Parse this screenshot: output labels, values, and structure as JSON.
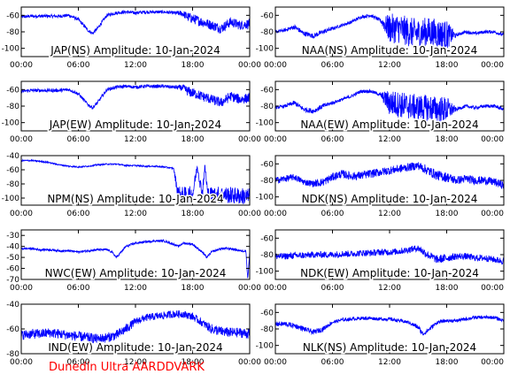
{
  "colors": {
    "trace": "#0000ff",
    "axes": "#000000",
    "footer": "#ff0000"
  },
  "footer": {
    "label": "Dunedin Ultra AARDDVARK"
  },
  "chart_data": [
    {
      "type": "line",
      "title": "JAP(NS) Amplitude: 10-Jan-2024",
      "xticks": [
        "00:00",
        "06:00",
        "12:00",
        "18:00",
        "00:00"
      ],
      "xlim": [
        0,
        24
      ],
      "ylim": [
        -110,
        -50
      ],
      "yticks": [
        -60,
        -80,
        -100
      ],
      "series": [
        {
          "x": [
            0,
            1,
            2,
            3,
            4,
            5,
            6,
            7,
            7.5,
            8,
            9,
            10,
            11,
            12,
            13,
            14,
            15,
            16,
            17,
            17.5,
            18,
            19,
            20,
            21,
            22,
            23,
            24
          ],
          "y": [
            -62,
            -61,
            -61,
            -61,
            -61,
            -60,
            -65,
            -78,
            -82,
            -76,
            -60,
            -57,
            -56,
            -57,
            -56,
            -56,
            -56,
            -57,
            -58,
            -62,
            -64,
            -68,
            -72,
            -76,
            -68,
            -72,
            -70
          ],
          "band": [
            2,
            2,
            2,
            2,
            2,
            2,
            2,
            2,
            2,
            2,
            2,
            2,
            2,
            2,
            2,
            2,
            2,
            2,
            4,
            6,
            6,
            6,
            6,
            6,
            6,
            6,
            6
          ]
        }
      ]
    },
    {
      "type": "line",
      "title": "NAA(NS) Amplitude: 10-Jan-2024",
      "xticks": [
        "00:00",
        "06:00",
        "12:00",
        "18:00",
        "00:00"
      ],
      "xlim": [
        0,
        24
      ],
      "ylim": [
        -110,
        -50
      ],
      "yticks": [
        -60,
        -80,
        -100
      ],
      "series": [
        {
          "x": [
            0,
            1,
            2,
            3,
            4,
            5,
            6,
            7,
            8,
            9,
            10,
            11,
            12,
            13,
            14,
            15,
            16,
            17,
            18,
            19,
            20,
            21,
            22,
            23,
            24
          ],
          "y": [
            -80,
            -78,
            -74,
            -82,
            -85,
            -80,
            -76,
            -72,
            -68,
            -62,
            -60,
            -66,
            -76,
            -76,
            -80,
            -82,
            -80,
            -82,
            -84,
            -84,
            -80,
            -82,
            -80,
            -80,
            -84
          ],
          "band": [
            2,
            2,
            3,
            3,
            3,
            3,
            2,
            2,
            2,
            2,
            2,
            2,
            18,
            18,
            18,
            18,
            18,
            18,
            18,
            2,
            2,
            2,
            2,
            2,
            2
          ]
        }
      ]
    },
    {
      "type": "line",
      "title": "JAP(EW) Amplitude: 10-Jan-2024",
      "xticks": [
        "00:00",
        "06:00",
        "12:00",
        "18:00",
        "00:00"
      ],
      "xlim": [
        0,
        24
      ],
      "ylim": [
        -110,
        -50
      ],
      "yticks": [
        -60,
        -80,
        -100
      ],
      "series": [
        {
          "x": [
            0,
            1,
            2,
            3,
            4,
            5,
            6,
            7,
            7.5,
            8,
            9,
            10,
            11,
            12,
            13,
            14,
            15,
            16,
            17,
            17.5,
            18,
            19,
            20,
            21,
            22,
            23,
            24
          ],
          "y": [
            -62,
            -61,
            -61,
            -61,
            -61,
            -60,
            -65,
            -78,
            -82,
            -76,
            -60,
            -57,
            -56,
            -57,
            -56,
            -56,
            -56,
            -57,
            -58,
            -62,
            -64,
            -68,
            -72,
            -76,
            -68,
            -72,
            -70
          ],
          "band": [
            2,
            2,
            2,
            2,
            2,
            2,
            2,
            2,
            2,
            2,
            2,
            2,
            2,
            2,
            2,
            2,
            2,
            2,
            4,
            6,
            6,
            6,
            6,
            6,
            6,
            6,
            6
          ]
        }
      ]
    },
    {
      "type": "line",
      "title": "NAA(EW) Amplitude: 10-Jan-2024",
      "xticks": [
        "00:00",
        "06:00",
        "12:00",
        "18:00",
        "00:00"
      ],
      "xlim": [
        0,
        24
      ],
      "ylim": [
        -110,
        -50
      ],
      "yticks": [
        -60,
        -80,
        -100
      ],
      "series": [
        {
          "x": [
            0,
            1,
            2,
            3,
            4,
            5,
            6,
            7,
            8,
            9,
            10,
            11,
            12,
            13,
            14,
            15,
            16,
            17,
            18,
            19,
            20,
            21,
            22,
            23,
            24
          ],
          "y": [
            -82,
            -80,
            -76,
            -84,
            -86,
            -80,
            -76,
            -72,
            -68,
            -62,
            -62,
            -66,
            -76,
            -78,
            -80,
            -82,
            -82,
            -84,
            -84,
            -84,
            -80,
            -82,
            -80,
            -80,
            -84
          ],
          "band": [
            2,
            2,
            3,
            3,
            3,
            3,
            2,
            2,
            2,
            2,
            2,
            2,
            16,
            16,
            16,
            16,
            16,
            16,
            16,
            2,
            2,
            2,
            2,
            2,
            2
          ]
        }
      ]
    },
    {
      "type": "line",
      "title": "NPM(NS) Amplitude: 10-Jan-2024",
      "xticks": [
        "00:00",
        "06:00",
        "12:00",
        "18:00",
        "00:00"
      ],
      "xlim": [
        0,
        24
      ],
      "ylim": [
        -110,
        -40
      ],
      "yticks": [
        -40,
        -60,
        -80,
        -100
      ],
      "series": [
        {
          "x": [
            0,
            1,
            2,
            3,
            4,
            5,
            6,
            7,
            8,
            9,
            10,
            11,
            12,
            13,
            14,
            15,
            16,
            16.5,
            17,
            18,
            18.5,
            19,
            19.3,
            19.6,
            20,
            21,
            22,
            23,
            24
          ],
          "y": [
            -47,
            -47,
            -48,
            -50,
            -53,
            -55,
            -56,
            -55,
            -53,
            -52,
            -52,
            -54,
            -54,
            -55,
            -55,
            -56,
            -58,
            -95,
            -96,
            -95,
            -55,
            -95,
            -55,
            -95,
            -96,
            -95,
            -96,
            -97,
            -98
          ],
          "band": [
            1,
            1,
            1,
            1,
            1,
            1,
            1,
            1,
            1,
            1,
            1,
            1,
            1,
            1,
            1,
            1,
            1,
            12,
            12,
            12,
            4,
            12,
            4,
            12,
            12,
            12,
            12,
            12,
            12
          ]
        }
      ]
    },
    {
      "type": "line",
      "title": "NDK(NS) Amplitude: 10-Jan-2024",
      "xticks": [
        "00:00",
        "06:00",
        "12:00",
        "18:00",
        "00:00"
      ],
      "xlim": [
        0,
        24
      ],
      "ylim": [
        -110,
        -50
      ],
      "yticks": [
        -60,
        -80,
        -100
      ],
      "series": [
        {
          "x": [
            0,
            1,
            2,
            3,
            4,
            5,
            6,
            7,
            8,
            9,
            10,
            11,
            12,
            13,
            14,
            15,
            16,
            17,
            18,
            19,
            20,
            21,
            22,
            23,
            24
          ],
          "y": [
            -80,
            -78,
            -76,
            -82,
            -84,
            -82,
            -76,
            -72,
            -75,
            -74,
            -72,
            -70,
            -68,
            -66,
            -64,
            -62,
            -68,
            -74,
            -76,
            -80,
            -78,
            -80,
            -80,
            -82,
            -86
          ],
          "band": [
            4,
            4,
            4,
            4,
            4,
            5,
            5,
            5,
            5,
            5,
            5,
            5,
            5,
            5,
            5,
            5,
            6,
            6,
            6,
            5,
            5,
            5,
            5,
            5,
            5
          ]
        }
      ]
    },
    {
      "type": "line",
      "title": "NWC(EW) Amplitude: 10-Jan-2024",
      "xticks": [
        "00:00",
        "06:00",
        "12:00",
        "18:00",
        "00:00"
      ],
      "xlim": [
        0,
        24
      ],
      "ylim": [
        -70,
        -25
      ],
      "yticks": [
        -30,
        -40,
        -50,
        -60,
        -70
      ],
      "series": [
        {
          "x": [
            0,
            1,
            2,
            3,
            4,
            5,
            6,
            7,
            8,
            9,
            9.5,
            10,
            11,
            12,
            13,
            14,
            15,
            16,
            16.5,
            17,
            18,
            19,
            19.5,
            20,
            21,
            22,
            23,
            23.6,
            23.8,
            24
          ],
          "y": [
            -42,
            -42,
            -43,
            -43,
            -44,
            -44,
            -45,
            -44,
            -43,
            -43,
            -45,
            -50,
            -40,
            -37,
            -36,
            -35,
            -35,
            -38,
            -40,
            -37,
            -38,
            -45,
            -50,
            -45,
            -42,
            -42,
            -44,
            -44,
            -70,
            -44
          ],
          "band": [
            1,
            1,
            1,
            1,
            1,
            1,
            1,
            1,
            1,
            1,
            1,
            1,
            1,
            1,
            1,
            1,
            1,
            1,
            1,
            1,
            1,
            1,
            1,
            1,
            1,
            1,
            1,
            1,
            1,
            1
          ]
        }
      ]
    },
    {
      "type": "line",
      "title": "NDK(EW) Amplitude: 10-Jan-2024",
      "xticks": [
        "00:00",
        "06:00",
        "12:00",
        "18:00",
        "00:00"
      ],
      "xlim": [
        0,
        24
      ],
      "ylim": [
        -110,
        -50
      ],
      "yticks": [
        -60,
        -80,
        -100
      ],
      "series": [
        {
          "x": [
            0,
            1,
            2,
            3,
            4,
            5,
            6,
            7,
            8,
            9,
            10,
            11,
            12,
            13,
            14,
            15,
            16,
            17,
            18,
            19,
            20,
            21,
            22,
            23,
            24
          ],
          "y": [
            -82,
            -82,
            -81,
            -81,
            -80,
            -80,
            -80,
            -79,
            -79,
            -78,
            -78,
            -77,
            -77,
            -76,
            -74,
            -72,
            -80,
            -86,
            -84,
            -82,
            -82,
            -84,
            -84,
            -86,
            -88
          ],
          "band": [
            4,
            4,
            4,
            4,
            4,
            4,
            4,
            4,
            4,
            4,
            4,
            4,
            4,
            4,
            4,
            4,
            5,
            5,
            5,
            4,
            4,
            4,
            4,
            4,
            4
          ]
        }
      ]
    },
    {
      "type": "line",
      "title": "IND(EW) Amplitude: 10-Jan-2024",
      "xticks": [
        "00:00",
        "06:00",
        "12:00",
        "18:00",
        "00:00"
      ],
      "xlim": [
        0,
        24
      ],
      "ylim": [
        -80,
        -40
      ],
      "yticks": [
        -40,
        -60,
        -80
      ],
      "series": [
        {
          "x": [
            0,
            1,
            2,
            3,
            4,
            5,
            6,
            7,
            8,
            9,
            10,
            11,
            12,
            13,
            14,
            15,
            16,
            17,
            18,
            19,
            20,
            21,
            22,
            23,
            24
          ],
          "y": [
            -65,
            -64,
            -64,
            -63,
            -64,
            -65,
            -66,
            -67,
            -68,
            -67,
            -65,
            -60,
            -54,
            -51,
            -50,
            -49,
            -48,
            -48,
            -50,
            -55,
            -60,
            -62,
            -63,
            -63,
            -64
          ],
          "band": [
            4,
            4,
            4,
            4,
            4,
            4,
            4,
            4,
            4,
            4,
            4,
            4,
            3,
            3,
            3,
            3,
            3,
            3,
            3,
            3,
            4,
            4,
            4,
            4,
            4
          ]
        }
      ]
    },
    {
      "type": "line",
      "title": "NLK(NS) Amplitude: 10-Jan-2024",
      "xticks": [
        "00:00",
        "06:00",
        "12:00",
        "18:00",
        "00:00"
      ],
      "xlim": [
        0,
        24
      ],
      "ylim": [
        -110,
        -50
      ],
      "yticks": [
        -60,
        -80,
        -100
      ],
      "series": [
        {
          "x": [
            0,
            1,
            2,
            3,
            4,
            5,
            6,
            7,
            8,
            9,
            10,
            11,
            12,
            13,
            14,
            15,
            15.5,
            16,
            17,
            18,
            19,
            20,
            21,
            22,
            23,
            24
          ],
          "y": [
            -74,
            -74,
            -76,
            -80,
            -84,
            -80,
            -72,
            -69,
            -68,
            -67,
            -67,
            -68,
            -68,
            -70,
            -72,
            -78,
            -86,
            -82,
            -72,
            -70,
            -70,
            -68,
            -66,
            -66,
            -66,
            -70
          ],
          "band": [
            3,
            3,
            3,
            3,
            3,
            3,
            2,
            2,
            2,
            2,
            2,
            2,
            2,
            2,
            2,
            3,
            3,
            3,
            2,
            2,
            2,
            2,
            2,
            2,
            2,
            2
          ]
        }
      ]
    }
  ]
}
